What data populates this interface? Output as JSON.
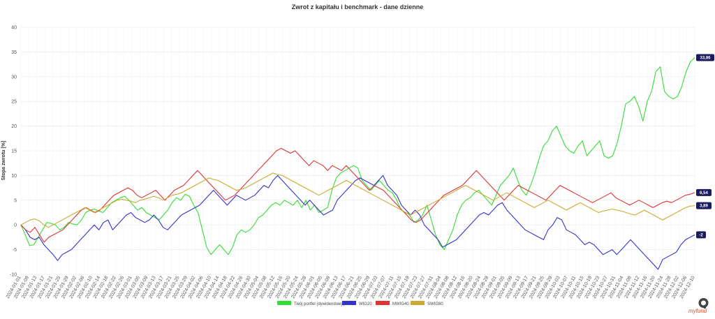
{
  "chart_data": {
    "type": "line",
    "title": "Zwrot z kapitału i benchmark - dane dzienne",
    "ylabel": "Stopa zwrotu [%]",
    "xlabel": "",
    "ylim": [
      -10,
      40
    ],
    "yticks": [
      -10,
      -5,
      0,
      5,
      10,
      15,
      20,
      25,
      30,
      35,
      40
    ],
    "grid": true,
    "legend_position": "bottom",
    "x_labels": [
      "2024-01-01",
      "2024-01-09",
      "2024-01-13",
      "2024-01-17",
      "2024-01-21",
      "2024-01-25",
      "2024-01-29",
      "2024-02-02",
      "2024-02-06",
      "2024-02-10",
      "2024-02-14",
      "2024-02-18",
      "2024-02-22",
      "2024-02-26",
      "2024-03-01",
      "2024-03-05",
      "2024-03-09",
      "2024-03-13",
      "2024-03-17",
      "2024-03-21",
      "2024-03-25",
      "2024-03-29",
      "2024-04-02",
      "2024-04-06",
      "2024-04-10",
      "2024-04-14",
      "2024-04-18",
      "2024-04-22",
      "2024-04-26",
      "2024-04-30",
      "2024-05-04",
      "2024-05-08",
      "2024-05-12",
      "2024-05-16",
      "2024-05-20",
      "2024-05-24",
      "2024-05-28",
      "2024-06-01",
      "2024-06-05",
      "2024-06-09",
      "2024-06-13",
      "2024-06-17",
      "2024-06-21",
      "2024-06-25",
      "2024-06-29",
      "2024-07-03",
      "2024-07-07",
      "2024-07-11",
      "2024-07-15",
      "2024-07-19",
      "2024-07-23",
      "2024-07-27",
      "2024-07-31",
      "2024-08-04",
      "2024-08-08",
      "2024-08-12",
      "2024-08-16",
      "2024-08-20",
      "2024-08-24",
      "2024-08-28",
      "2024-09-01",
      "2024-09-05",
      "2024-09-09",
      "2024-09-13",
      "2024-09-17",
      "2024-09-21",
      "2024-09-25",
      "2024-09-29",
      "2024-10-03",
      "2024-10-07",
      "2024-10-11",
      "2024-10-15",
      "2024-10-19",
      "2024-10-23",
      "2024-10-27",
      "2024-10-31",
      "2024-11-04",
      "2024-11-08",
      "2024-11-12",
      "2024-11-16",
      "2024-11-20",
      "2024-11-24",
      "2024-11-28",
      "2024-12-02",
      "2024-12-06",
      "2024-12-10"
    ],
    "series": [
      {
        "name": "Twój portfel (dywidendowy)",
        "color": "#33dd33",
        "end_label": "33,86",
        "values": [
          0,
          -2,
          -4.2,
          -4,
          -2.5,
          -1,
          0.5,
          0.3,
          0,
          -1,
          -0.5,
          0.5,
          0.2,
          0,
          1,
          2.5,
          3,
          3.2,
          2.8,
          2.5,
          3.5,
          4.5,
          5,
          5.5,
          5.8,
          5,
          4,
          3,
          3.5,
          2.5,
          2,
          1.5,
          1,
          2,
          3,
          4.5,
          5.5,
          5,
          6.2,
          5.8,
          4,
          2.5,
          -1,
          -4.5,
          -6,
          -5,
          -4,
          -5,
          -6,
          -4.5,
          -2,
          -1,
          -1.5,
          -1,
          0,
          1.5,
          2,
          3,
          4,
          4.5,
          4,
          5,
          4.5,
          4,
          5,
          3.5,
          5,
          3,
          4,
          2.5,
          3,
          3.5,
          7,
          9.5,
          10.5,
          11,
          11.5,
          12,
          11.5,
          9,
          8,
          7,
          8,
          9,
          8,
          7,
          6.5,
          5,
          3,
          2.5,
          2,
          0.5,
          1,
          2,
          4,
          1,
          -2,
          -4,
          -5,
          -3,
          -1,
          2,
          4,
          5,
          5.5,
          6.5,
          7,
          6,
          5,
          4,
          6,
          8,
          9,
          10,
          11.5,
          9,
          7,
          6,
          8,
          10.5,
          13.5,
          16,
          17,
          19,
          20,
          18,
          16,
          15,
          14.5,
          16,
          17,
          14,
          15,
          16,
          17,
          14,
          13.5,
          14,
          16.5,
          20,
          24.5,
          25,
          26,
          24,
          21,
          25,
          27,
          31,
          32,
          27,
          26,
          25.5,
          26,
          28,
          31,
          33,
          33.86
        ]
      },
      {
        "name": "WIG20",
        "color": "#3333cc",
        "end_label": "-2",
        "values": [
          0,
          -1,
          -2.5,
          -3,
          -2.5,
          -4,
          -5,
          -6,
          -7.2,
          -6,
          -5.5,
          -5,
          -4,
          -3,
          -2,
          -1,
          0,
          -1,
          0.5,
          1,
          -1,
          0,
          1,
          2,
          2.5,
          1.5,
          1,
          0.5,
          1,
          2,
          1,
          -0.5,
          -1,
          0,
          1,
          2,
          2.5,
          3,
          3.5,
          4,
          5,
          6,
          7,
          6,
          5,
          4,
          5,
          6,
          5.5,
          5,
          5.5,
          6,
          7,
          8,
          7.5,
          9,
          10,
          9,
          8,
          7,
          6,
          5,
          4,
          5,
          4,
          3,
          2,
          2.5,
          3,
          5,
          6,
          7,
          8,
          9,
          9.5,
          9,
          8.5,
          8,
          9,
          10,
          8,
          7,
          6,
          4,
          3,
          2,
          3,
          2,
          0,
          -1,
          -2,
          -3,
          -4.5,
          -4,
          -3.5,
          -3,
          -2,
          -1,
          0,
          1,
          2,
          2.5,
          2,
          3,
          4,
          4.5,
          3,
          2,
          1,
          0,
          -1,
          -1.5,
          -2,
          -2.5,
          -3,
          -1,
          0,
          1.5,
          1,
          -1,
          -1.5,
          -2,
          -3,
          -4,
          -3.5,
          -4,
          -5,
          -6,
          -5.5,
          -5,
          -6,
          -5,
          -4,
          -3,
          -4,
          -5,
          -6,
          -7,
          -8,
          -9,
          -7,
          -6.5,
          -6,
          -5.5,
          -4,
          -3,
          -2.5,
          -2
        ]
      },
      {
        "name": "MWIG40",
        "color": "#dd3333",
        "end_label": "6,54",
        "values": [
          0,
          -1,
          -1.5,
          -0.5,
          -2,
          -3.5,
          -2.5,
          -2,
          -1.5,
          -1,
          0,
          1,
          2,
          3,
          3.5,
          3,
          2.5,
          3,
          4,
          5,
          6,
          6.5,
          7,
          7.5,
          7,
          6,
          5.5,
          6,
          6.5,
          7,
          6,
          5,
          6,
          7,
          7.5,
          8,
          9,
          10,
          11,
          10,
          9,
          8,
          7,
          6,
          5,
          5.5,
          6,
          7,
          8,
          9,
          10,
          11,
          12,
          13,
          14,
          15,
          15.5,
          15,
          14.5,
          15,
          14,
          13,
          12,
          13,
          12.5,
          12,
          11,
          12,
          11.5,
          11,
          12,
          11,
          10,
          9,
          8,
          7,
          8,
          7.5,
          7,
          6,
          5,
          4,
          3,
          2,
          1,
          0.5,
          1,
          2,
          3,
          4,
          5,
          6,
          6.5,
          7,
          7.5,
          8,
          9,
          10,
          11,
          10,
          9,
          8,
          7,
          6,
          5,
          6,
          7,
          8,
          7.5,
          7,
          6.5,
          6,
          5.5,
          5,
          6,
          7,
          8,
          7.5,
          7,
          6.5,
          6,
          5.5,
          5,
          4.5,
          5,
          5.5,
          6,
          6.5,
          5.5,
          5,
          4.5,
          4,
          4.5,
          5,
          4.5,
          4,
          3.5,
          4,
          4.5,
          4.8,
          4.5,
          5,
          5.5,
          6,
          6.2,
          6.54
        ]
      },
      {
        "name": "SWIG80",
        "color": "#ccaa33",
        "end_label": "3,89",
        "values": [
          0,
          0.5,
          1,
          1.2,
          0.8,
          0,
          -0.5,
          0,
          0.5,
          1,
          1.5,
          2,
          2.5,
          3,
          3.5,
          3,
          2.5,
          3,
          3.5,
          4,
          4.5,
          5,
          5.2,
          5,
          4.8,
          4.5,
          5,
          5.2,
          5.5,
          5.8,
          5.5,
          5,
          5.5,
          6,
          6.2,
          6.5,
          7,
          7.5,
          8,
          8.5,
          9,
          9.5,
          9.2,
          9,
          8.5,
          8,
          7.5,
          7,
          7.2,
          7.5,
          8,
          8.5,
          9,
          9.5,
          10,
          10.5,
          10.2,
          10,
          9.5,
          9,
          8.5,
          8,
          7.5,
          7,
          6.5,
          6,
          6.5,
          7,
          7.5,
          8,
          8.5,
          9,
          8.5,
          8,
          7.5,
          7,
          6.5,
          6,
          5.5,
          5,
          4.5,
          4,
          3.5,
          3,
          2.5,
          2,
          2.5,
          3,
          3.5,
          4,
          4.5,
          5,
          5.5,
          6,
          6.5,
          7,
          7.5,
          8,
          7.5,
          7,
          6.5,
          6,
          5.5,
          5,
          5.5,
          6,
          6.5,
          6,
          5.5,
          5,
          4.5,
          4,
          3.5,
          4,
          4.5,
          5,
          4.5,
          4,
          3.5,
          3,
          3.5,
          4,
          4.5,
          4,
          3.5,
          3,
          2.5,
          2.8,
          3,
          3.2,
          3,
          2.8,
          2.5,
          2.2,
          2,
          2.5,
          3,
          2.5,
          2,
          1.5,
          1,
          1.5,
          2,
          2.5,
          3,
          3.5,
          3.8,
          3.89
        ]
      }
    ]
  },
  "logo": {
    "text": "myfund"
  }
}
